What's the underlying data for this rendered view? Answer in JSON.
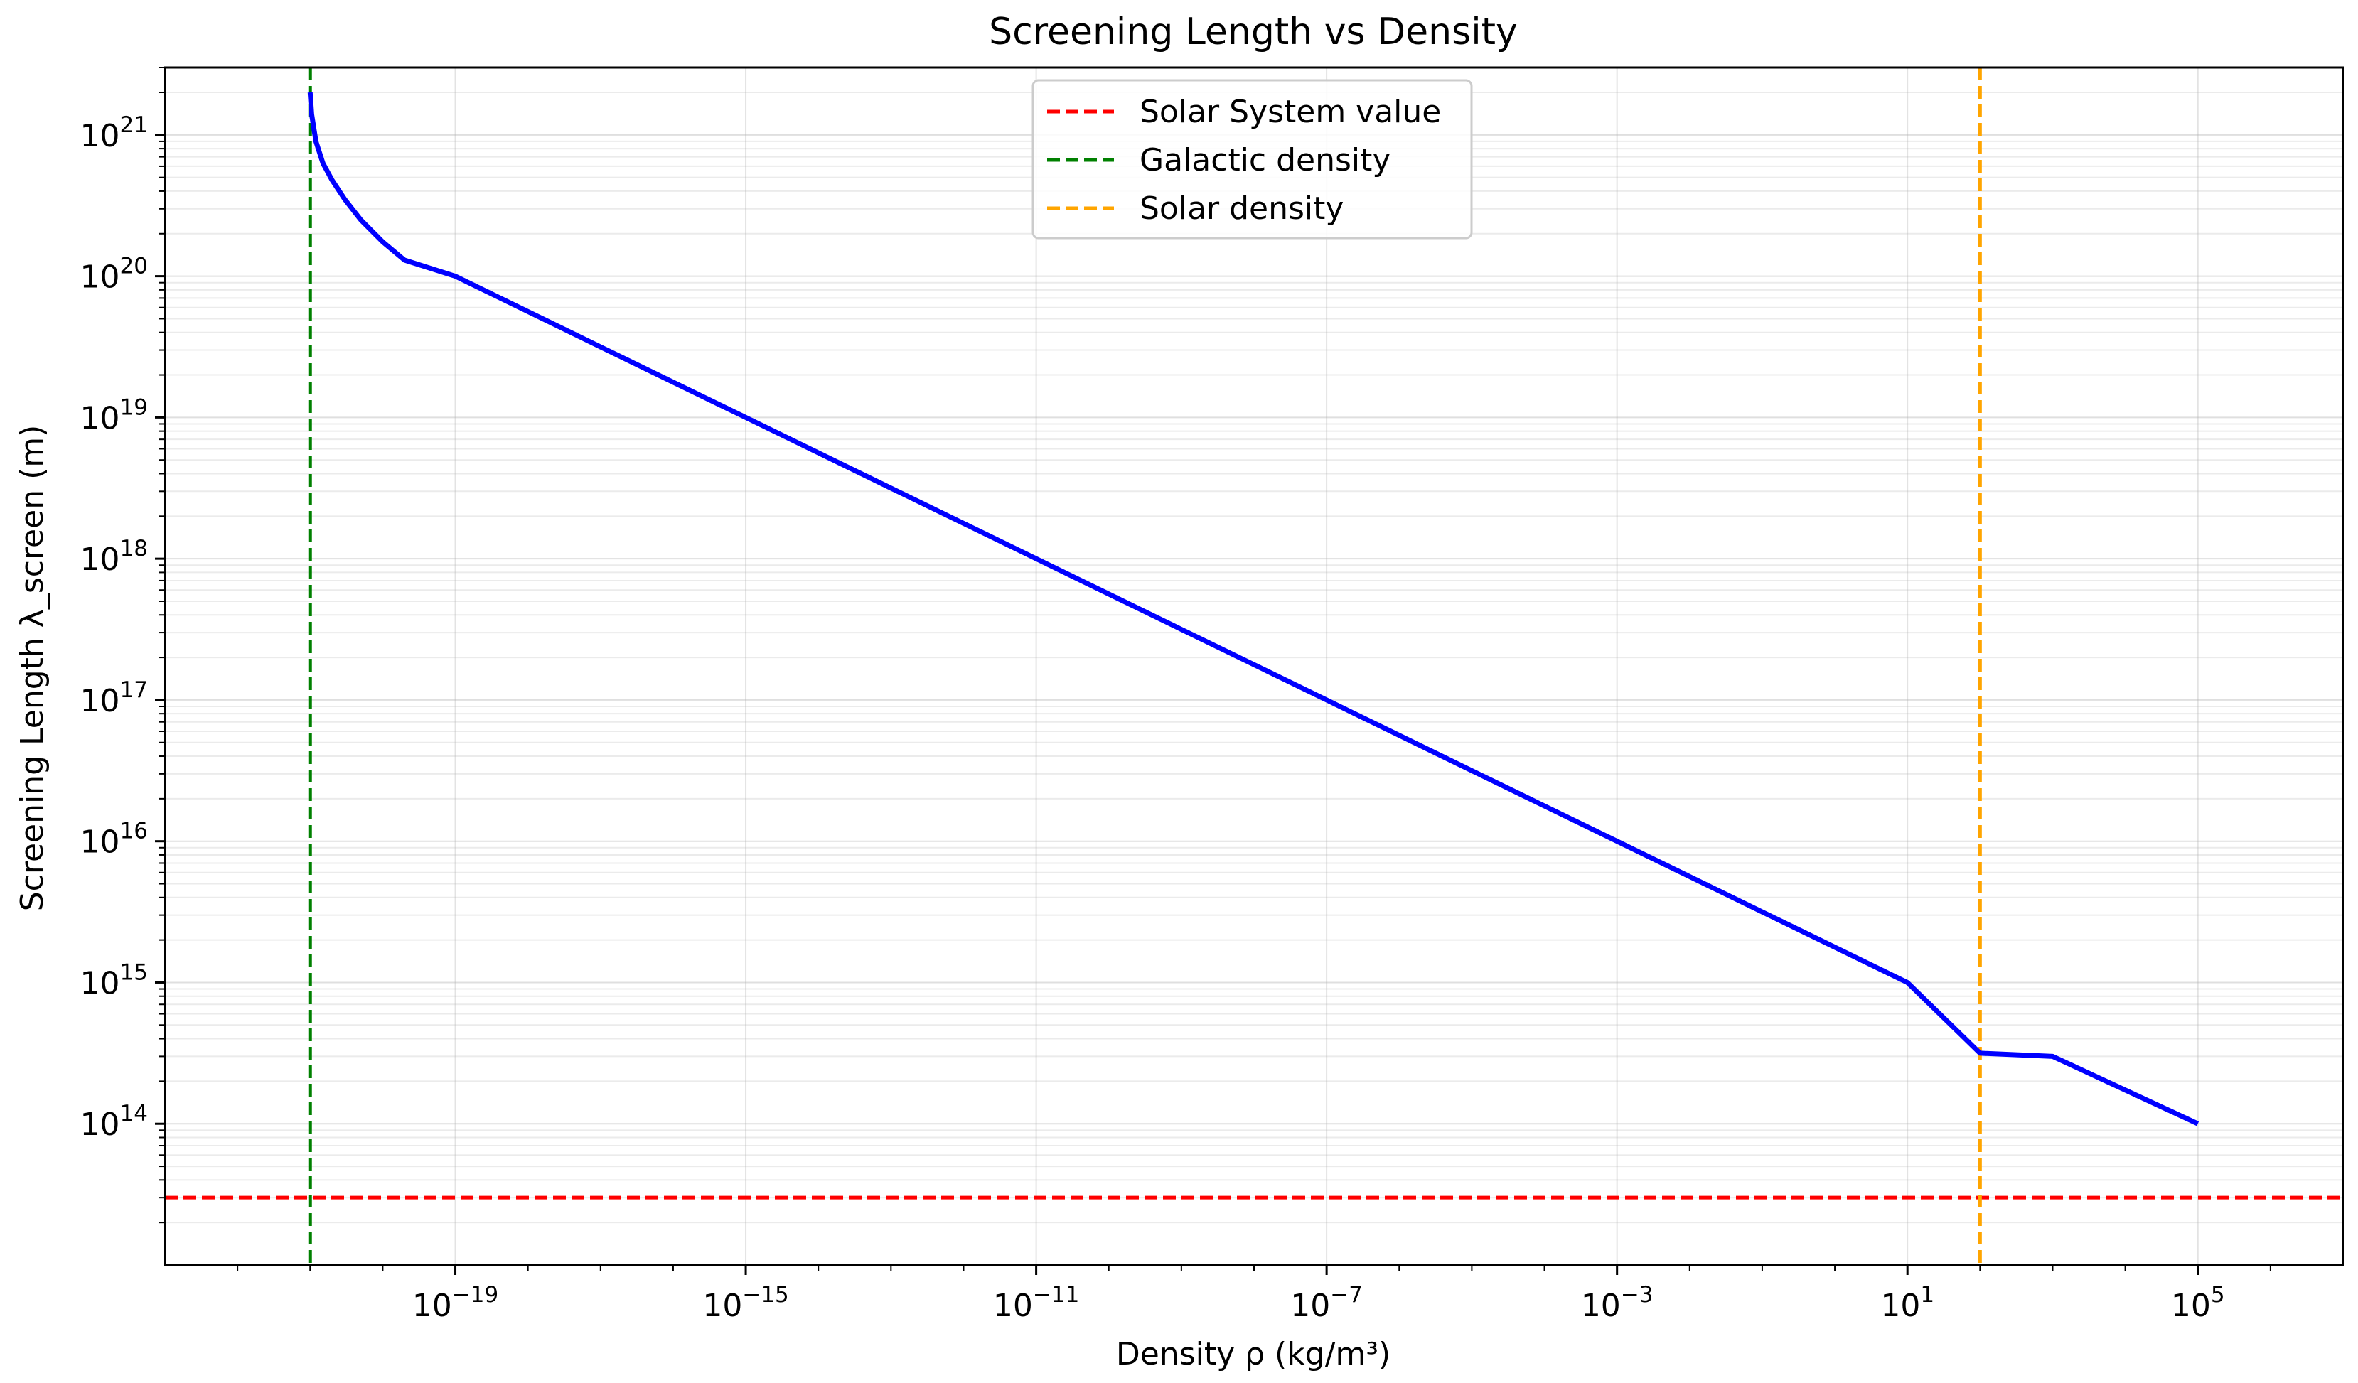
{
  "chart_data": {
    "type": "line",
    "title": "Screening Length vs Density",
    "xlabel": "Density ρ (kg/m³)",
    "ylabel": "Screening Length λ_screen (m)",
    "xscale": "log",
    "yscale": "log",
    "xlim": [
      1e-23,
      10000000.0
    ],
    "ylim": [
      10000000000000.0,
      3e+21
    ],
    "grid": true,
    "xticks": [
      {
        "value": 1e-19,
        "base": "10",
        "exp": "−19"
      },
      {
        "value": 1e-15,
        "base": "10",
        "exp": "−15"
      },
      {
        "value": 1e-11,
        "base": "10",
        "exp": "−11"
      },
      {
        "value": 1e-07,
        "base": "10",
        "exp": "−7"
      },
      {
        "value": 0.001,
        "base": "10",
        "exp": "−3"
      },
      {
        "value": 10,
        "base": "10",
        "exp": "1"
      },
      {
        "value": 100000.0,
        "base": "10",
        "exp": "5"
      }
    ],
    "yticks": [
      {
        "value": 100000000000000.0,
        "base": "10",
        "exp": "14"
      },
      {
        "value": 1000000000000000.0,
        "base": "10",
        "exp": "15"
      },
      {
        "value": 1e+16,
        "base": "10",
        "exp": "16"
      },
      {
        "value": 1e+17,
        "base": "10",
        "exp": "17"
      },
      {
        "value": 1e+18,
        "base": "10",
        "exp": "18"
      },
      {
        "value": 1e+19,
        "base": "10",
        "exp": "19"
      },
      {
        "value": 1e+20,
        "base": "10",
        "exp": "20"
      },
      {
        "value": 1e+21,
        "base": "10",
        "exp": "21"
      }
    ],
    "series": [
      {
        "color": "#0000ff",
        "style": "solid",
        "x": [
          1e-21,
          1.05e-21,
          1.2e-21,
          1.5e-21,
          2e-21,
          3e-21,
          5e-21,
          1e-20,
          2e-20,
          1e-19,
          1e-17,
          1e-15,
          1e-13,
          1e-11,
          1e-09,
          1e-07,
          1e-05,
          0.001,
          0.1,
          10,
          100,
          1000.0,
          100000.0
        ],
        "y": [
          2e+21,
          1.4e+21,
          9e+20,
          6.3e+20,
          4.8e+20,
          3.5e+20,
          2.5e+20,
          1.75e+20,
          1.3e+20,
          1e+20,
          3.16e+19,
          1e+19,
          3.16e+18,
          1e+18,
          3.16e+17,
          1e+17,
          3.16e+16,
          1e+16,
          3160000000000000.0,
          1000000000000000.0,
          316000000000000.0,
          300000000000000.0,
          100000000000000.0
        ]
      }
    ],
    "reference_lines": [
      {
        "name": "Solar System value",
        "orientation": "horizontal",
        "value": 30000000000000.0,
        "color": "#ff0000",
        "style": "dashed"
      },
      {
        "name": "Galactic density",
        "orientation": "vertical",
        "value": 1e-21,
        "color": "#008000",
        "style": "dashed"
      },
      {
        "name": "Solar density",
        "orientation": "vertical",
        "value": 100,
        "color": "#ffa500",
        "style": "dashed"
      }
    ],
    "legend": {
      "placement": "top-center"
    }
  }
}
